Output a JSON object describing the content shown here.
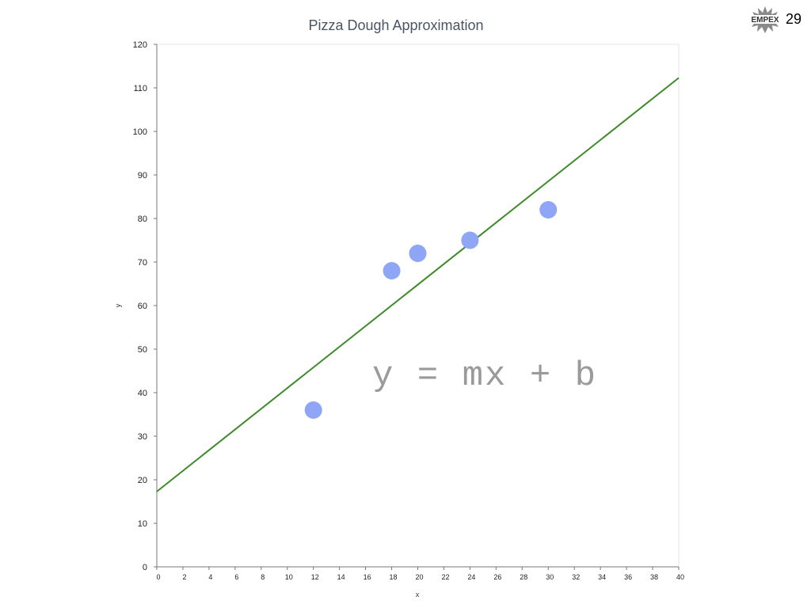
{
  "slide": {
    "number": "29",
    "logo_text": "EMPEX",
    "overlay_formula": "y = mx + b"
  },
  "chart_data": {
    "type": "scatter",
    "title": "Pizza Dough Approximation",
    "xlabel": "x",
    "ylabel": "y",
    "xlim": [
      0,
      40
    ],
    "ylim": [
      0,
      120
    ],
    "x_ticks": [
      0,
      2,
      4,
      6,
      8,
      10,
      12,
      14,
      16,
      18,
      20,
      22,
      24,
      26,
      28,
      30,
      32,
      34,
      36,
      38,
      40
    ],
    "y_ticks": [
      0,
      10,
      20,
      30,
      40,
      50,
      60,
      70,
      80,
      90,
      100,
      110,
      120
    ],
    "grid": false,
    "series": [
      {
        "points": [
          {
            "x": 12,
            "y": 36
          },
          {
            "x": 18,
            "y": 68
          },
          {
            "x": 20,
            "y": 72
          },
          {
            "x": 24,
            "y": 75
          },
          {
            "x": 30,
            "y": 82
          }
        ],
        "color": "#8fa5f5"
      }
    ],
    "trend_line": {
      "points": [
        {
          "x": 0,
          "y": 17.3
        },
        {
          "x": 40,
          "y": 112.3
        }
      ],
      "color": "#3f8a2a"
    }
  }
}
